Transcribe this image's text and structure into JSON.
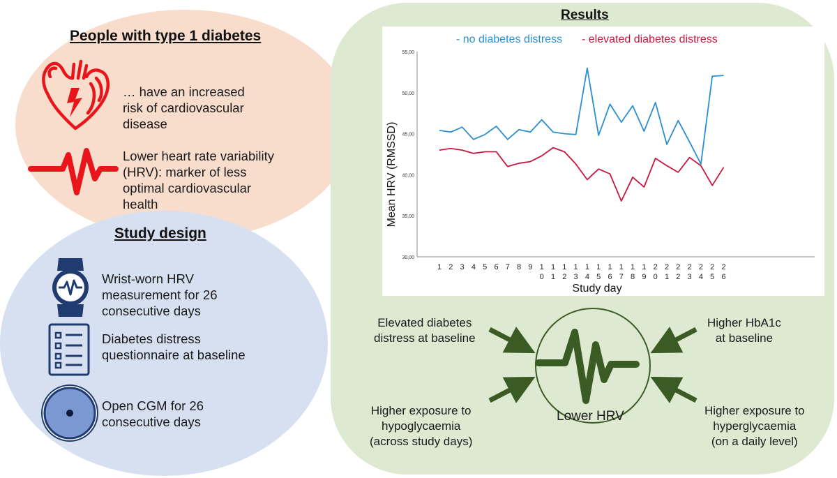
{
  "colors": {
    "no_distress": "#2a8fd1",
    "elevated_distress": "#c8173f",
    "icon_red": "#e8151b",
    "icon_navy": "#1f3b6f",
    "arrow_green": "#3b5b25"
  },
  "people": {
    "title": "People with type 1 diabetes",
    "item1_lines": [
      "… have an increased",
      "risk of cardiovascular",
      "disease"
    ],
    "item2_lines": [
      "Lower heart rate variability",
      "(HRV): marker of less",
      "optimal cardiovascular",
      "health"
    ]
  },
  "design": {
    "title": "Study design",
    "item1_lines": [
      "Wrist-worn HRV",
      "measurement for 26",
      "consecutive days"
    ],
    "item2_lines": [
      "Diabetes distress",
      "questionnaire at baseline"
    ],
    "item3_lines": [
      "Open CGM for 26",
      "consecutive days"
    ]
  },
  "results": {
    "title": "Results",
    "center_label": "Lower HRV",
    "factor_top_left": [
      "Elevated diabetes",
      "distress at baseline"
    ],
    "factor_top_right": [
      "Higher HbA1c",
      "at baseline"
    ],
    "factor_bottom_left": [
      "Higher exposure to",
      "hypoglycaemia",
      "(across study days)"
    ],
    "factor_bottom_right": [
      "Higher exposure to",
      "hyperglycaemia",
      "(on a daily level)"
    ]
  },
  "chart_data": {
    "type": "line",
    "xlabel": "Study day",
    "ylabel": "Mean HRV (RMSSD)",
    "ylim": [
      30,
      55
    ],
    "y_ticks": [
      "30,00",
      "35,00",
      "40,00",
      "45,00",
      "50,00",
      "55,00"
    ],
    "y_tick_values": [
      30,
      35,
      40,
      45,
      50,
      55
    ],
    "x_tick_labels": [
      "1",
      "2",
      "3",
      "4",
      "5",
      "6",
      "7",
      "8",
      "9",
      "10",
      "11",
      "12",
      "13",
      "14",
      "15",
      "16",
      "17",
      "18",
      "19",
      "20",
      "21",
      "22",
      "23",
      "24",
      "25",
      "26"
    ],
    "legend": [
      "- no diabetes distress",
      "- elevated diabetes distress"
    ],
    "series": [
      {
        "name": "no diabetes distress",
        "values": [
          45.4,
          45.2,
          45.8,
          44.3,
          44.9,
          45.9,
          44.3,
          45.5,
          45.2,
          46.7,
          45.2,
          45.0,
          44.9,
          53.0,
          44.8,
          48.6,
          46.4,
          48.4,
          45.3,
          48.8,
          43.7,
          46.6,
          44.0,
          41.3,
          52.0,
          52.1
        ]
      },
      {
        "name": "elevated diabetes distress",
        "values": [
          43.0,
          43.2,
          43.0,
          42.6,
          42.8,
          42.8,
          41.0,
          41.4,
          41.6,
          42.3,
          43.3,
          42.8,
          41.3,
          39.4,
          40.7,
          40.1,
          36.8,
          39.7,
          38.5,
          42.0,
          41.1,
          40.3,
          42.1,
          41.1,
          38.7,
          40.9
        ]
      }
    ]
  }
}
